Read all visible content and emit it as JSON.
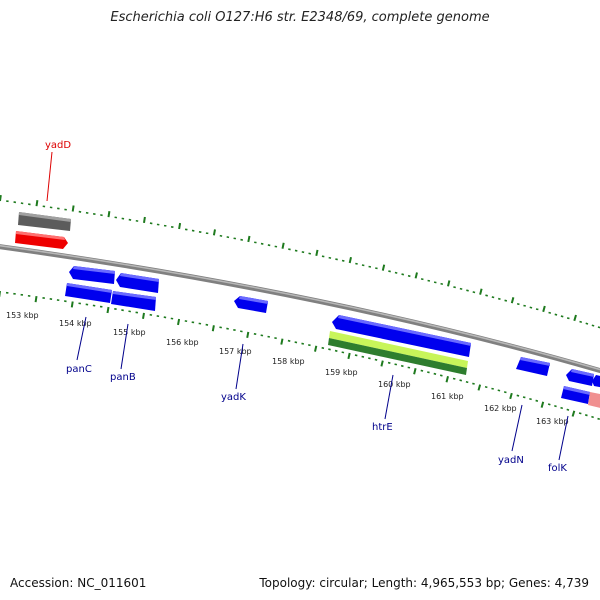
{
  "title": "Escherichia coli O127:H6 str. E2348/69, complete genome",
  "footer": {
    "accession": "Accession: NC_011601",
    "topology": "Topology: circular; Length: 4,965,553 bp; Genes: 4,739"
  },
  "colors": {
    "backbone": "#808080",
    "tick": "#1e7a1e",
    "gene_cds": "#0000ee",
    "gene_other": "#ee0000",
    "gene_gray": "#5c5c5c",
    "highlight_light": "#c8f55a",
    "highlight_dark": "#2e7d2e",
    "pink": "#f09090"
  },
  "tick_labels": [
    "153 kbp",
    "154 kbp",
    "155 kbp",
    "156 kbp",
    "157 kbp",
    "158 kbp",
    "159 kbp",
    "160 kbp",
    "161 kbp",
    "162 kbp",
    "163 kbp"
  ],
  "gene_labels": [
    {
      "name": "yadD",
      "color": "#dd0000"
    },
    {
      "name": "panC",
      "color": "#00008b"
    },
    {
      "name": "panB",
      "color": "#00008b"
    },
    {
      "name": "yadK",
      "color": "#00008b"
    },
    {
      "name": "htrE",
      "color": "#00008b"
    },
    {
      "name": "yadN",
      "color": "#00008b"
    },
    {
      "name": "folK",
      "color": "#00008b"
    }
  ]
}
